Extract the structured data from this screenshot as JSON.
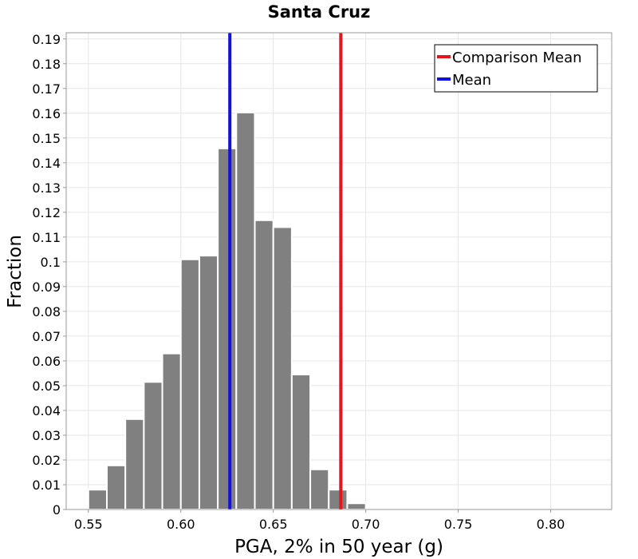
{
  "chart_data": {
    "type": "bar",
    "title": "Santa Cruz",
    "xlabel": "PGA, 2% in 50 year (g)",
    "ylabel": "Fraction",
    "xlim": [
      0.538,
      0.833
    ],
    "ylim": [
      0,
      0.1925
    ],
    "x_ticks": [
      0.55,
      0.6,
      0.65,
      0.7,
      0.75,
      0.8
    ],
    "x_tick_labels": [
      "0.55",
      "0.60",
      "0.65",
      "0.70",
      "0.75",
      "0.80"
    ],
    "y_ticks": [
      0,
      0.01,
      0.02,
      0.03,
      0.04,
      0.05,
      0.06,
      0.07,
      0.08,
      0.09,
      0.1,
      0.11,
      0.12,
      0.13,
      0.14,
      0.15,
      0.16,
      0.17,
      0.18,
      0.19
    ],
    "y_tick_labels": [
      "0",
      "0.01",
      "0.02",
      "0.03",
      "0.04",
      "0.05",
      "0.06",
      "0.07",
      "0.08",
      "0.09",
      "0.1",
      "0.11",
      "0.12",
      "0.13",
      "0.14",
      "0.15",
      "0.16",
      "0.17",
      "0.18",
      "0.19"
    ],
    "grid": true,
    "bar_width": 0.01,
    "bar_color": "#808080",
    "bins": [
      {
        "x": 0.545,
        "value": 0.0005
      },
      {
        "x": 0.555,
        "value": 0.008
      },
      {
        "x": 0.565,
        "value": 0.0178
      },
      {
        "x": 0.575,
        "value": 0.0365
      },
      {
        "x": 0.585,
        "value": 0.0515
      },
      {
        "x": 0.595,
        "value": 0.063
      },
      {
        "x": 0.605,
        "value": 0.101
      },
      {
        "x": 0.615,
        "value": 0.1025
      },
      {
        "x": 0.625,
        "value": 0.1458
      },
      {
        "x": 0.635,
        "value": 0.1603
      },
      {
        "x": 0.645,
        "value": 0.1168
      },
      {
        "x": 0.655,
        "value": 0.114
      },
      {
        "x": 0.665,
        "value": 0.0545
      },
      {
        "x": 0.675,
        "value": 0.0162
      },
      {
        "x": 0.685,
        "value": 0.008
      },
      {
        "x": 0.695,
        "value": 0.0025
      },
      {
        "x": 0.705,
        "value": 0.0005
      }
    ],
    "vlines": [
      {
        "name": "Comparison Mean",
        "x": 0.6865,
        "color": "#e8141c"
      },
      {
        "name": "Mean",
        "x": 0.6265,
        "color": "#1010e0"
      }
    ],
    "legend": {
      "position": "top-right",
      "entries": [
        {
          "label": "Comparison Mean",
          "color": "#e8141c"
        },
        {
          "label": "Mean",
          "color": "#1010e0"
        }
      ]
    }
  }
}
